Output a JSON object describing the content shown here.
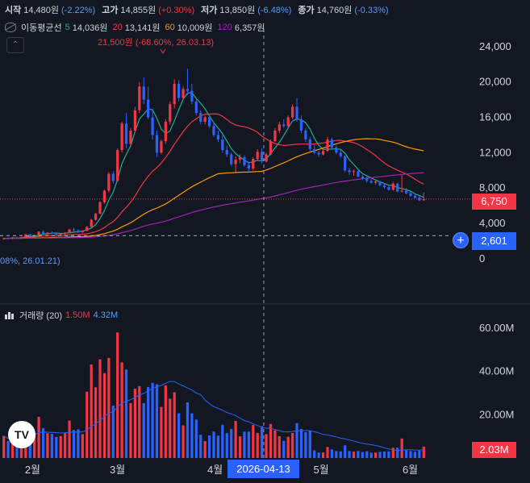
{
  "ohlc": {
    "open_label": "시작",
    "open": "14,480원",
    "open_chg": "(-2.22%)",
    "high_label": "고가",
    "high": "14,855원",
    "high_chg": "(+0.30%)",
    "low_label": "저가",
    "low": "13,850원",
    "low_chg": "(-6.48%)",
    "close_label": "종가",
    "close": "14,760원",
    "close_chg": "(-0.33%)"
  },
  "ma_legend": {
    "name": "이동평균선",
    "p5": "5",
    "v5": "14,036원",
    "p20": "20",
    "v20": "13,141원",
    "p60": "60",
    "v60": "10,009원",
    "p120": "120",
    "v120": "6,357원"
  },
  "volume_legend": {
    "name": "거래량 (20)",
    "v1": "1.50M",
    "v2": "4.32M"
  },
  "annotations": {
    "peak": "21,500원 (-68.60%, 26.03.13)",
    "low": "08%, 26.01.21)"
  },
  "tags": {
    "last_price": "6,750",
    "low_price": "2,601",
    "last_volume": "2.03M",
    "crosshair_date": "2026-04-13",
    "plus": "+"
  },
  "logo_text": "TV",
  "colors": {
    "background": "#131722",
    "up": "#f23645",
    "down": "#2962ff",
    "ma5": "#22ab94",
    "ma20": "#f23645",
    "ma60": "#ff9800",
    "ma120": "#9c27b0",
    "vol_ma": "#2962ff"
  },
  "chart_data": [
    {
      "type": "candlestick",
      "x_labels": [
        "2월",
        "3월",
        "4월",
        "5월",
        "6월"
      ],
      "y_ticks": [
        "24,000",
        "20,000",
        "16,000",
        "12,000",
        "8,000",
        "4,000",
        "0"
      ],
      "y_range": [
        -1300,
        26000
      ],
      "last_price": 6750,
      "low_marker": 2601,
      "candles_ohlc": [
        [
          2200,
          2350,
          2150,
          2300
        ],
        [
          2300,
          2400,
          2250,
          2280
        ],
        [
          2280,
          2450,
          2200,
          2400
        ],
        [
          2400,
          2500,
          2300,
          2350
        ],
        [
          2350,
          2450,
          2300,
          2420
        ],
        [
          2420,
          2800,
          2400,
          2750
        ],
        [
          2750,
          2800,
          2500,
          2550
        ],
        [
          2550,
          2700,
          2450,
          2650
        ],
        [
          2650,
          3100,
          2600,
          3050
        ],
        [
          3050,
          3200,
          2800,
          2850
        ],
        [
          2850,
          3000,
          2700,
          2950
        ],
        [
          2950,
          3100,
          2800,
          2900
        ],
        [
          2900,
          2950,
          2700,
          2750
        ],
        [
          2750,
          2850,
          2600,
          2800
        ],
        [
          2800,
          3000,
          2700,
          2950
        ],
        [
          2950,
          3400,
          2900,
          3300
        ],
        [
          3300,
          3500,
          3100,
          3200
        ],
        [
          3200,
          3300,
          2900,
          3000
        ],
        [
          3000,
          3200,
          2900,
          3150
        ],
        [
          3150,
          3700,
          3100,
          3600
        ],
        [
          3600,
          4500,
          3500,
          4400
        ],
        [
          4400,
          5200,
          4300,
          5100
        ],
        [
          5100,
          6500,
          5000,
          6400
        ],
        [
          6400,
          7800,
          6200,
          7700
        ],
        [
          7700,
          9800,
          7500,
          9600
        ],
        [
          9600,
          9900,
          8500,
          8800
        ],
        [
          8800,
          12500,
          8700,
          12300
        ],
        [
          12300,
          15500,
          12000,
          15300
        ],
        [
          15300,
          16500,
          12500,
          13000
        ],
        [
          13000,
          14800,
          12800,
          14500
        ],
        [
          14500,
          17200,
          14300,
          16800
        ],
        [
          16800,
          20000,
          16500,
          19500
        ],
        [
          19500,
          20500,
          17500,
          18000
        ],
        [
          18000,
          19500,
          15800,
          16000
        ],
        [
          16000,
          17000,
          13500,
          14000
        ],
        [
          14000,
          14500,
          11500,
          12000
        ],
        [
          12000,
          13500,
          11800,
          13300
        ],
        [
          13300,
          15800,
          13000,
          15500
        ],
        [
          15500,
          17800,
          15200,
          17500
        ],
        [
          17500,
          20300,
          17000,
          19800
        ],
        [
          19800,
          20200,
          17800,
          18200
        ],
        [
          18200,
          19500,
          18000,
          19200
        ],
        [
          19200,
          21500,
          18500,
          19000
        ],
        [
          19000,
          19800,
          17500,
          17800
        ],
        [
          17800,
          18000,
          16200,
          16500
        ],
        [
          16500,
          16800,
          15200,
          15500
        ],
        [
          15500,
          16200,
          15200,
          16000
        ],
        [
          16000,
          16300,
          14800,
          15000
        ],
        [
          15000,
          15500,
          13800,
          14000
        ],
        [
          14000,
          14500,
          13200,
          13500
        ],
        [
          13500,
          14000,
          12000,
          12300
        ],
        [
          12300,
          12800,
          11500,
          11800
        ],
        [
          11800,
          12000,
          10500,
          10700
        ],
        [
          10700,
          11600,
          9800,
          11200
        ],
        [
          11200,
          11800,
          10800,
          11500
        ],
        [
          11500,
          11700,
          10400,
          10600
        ],
        [
          10600,
          11000,
          9800,
          10200
        ],
        [
          10200,
          11500,
          10000,
          11300
        ],
        [
          11300,
          12400,
          11200,
          12100
        ],
        [
          12100,
          12500,
          10800,
          11000
        ],
        [
          11000,
          12000,
          10900,
          11800
        ],
        [
          11800,
          13500,
          11700,
          13300
        ],
        [
          13300,
          14800,
          13200,
          14500
        ],
        [
          14500,
          15500,
          14200,
          15200
        ],
        [
          15200,
          15800,
          14800,
          15000
        ],
        [
          15000,
          16200,
          14900,
          16000
        ],
        [
          16000,
          17500,
          15800,
          17200
        ],
        [
          17200,
          18200,
          15500,
          15800
        ],
        [
          15800,
          16200,
          14200,
          14500
        ],
        [
          14500,
          14800,
          13200,
          13500
        ],
        [
          13500,
          13800,
          12200,
          12400
        ],
        [
          12400,
          12900,
          11800,
          12000
        ],
        [
          12000,
          12200,
          11500,
          11800
        ],
        [
          11800,
          12400,
          11700,
          12200
        ],
        [
          12200,
          13800,
          12100,
          13500
        ],
        [
          13500,
          13700,
          12300,
          12600
        ],
        [
          12600,
          12800,
          11800,
          12000
        ],
        [
          12000,
          12300,
          11400,
          11600
        ],
        [
          11600,
          11700,
          9800,
          10000
        ],
        [
          10000,
          10300,
          9500,
          9800
        ],
        [
          9800,
          10100,
          9400,
          9900
        ],
        [
          9900,
          10000,
          9200,
          9300
        ],
        [
          9300,
          9500,
          8900,
          9100
        ],
        [
          9100,
          9300,
          8600,
          8800
        ],
        [
          8800,
          9000,
          8500,
          8600
        ],
        [
          8600,
          8900,
          8400,
          8750
        ],
        [
          8750,
          8800,
          8200,
          8300
        ],
        [
          8300,
          8500,
          7900,
          8100
        ],
        [
          8100,
          8300,
          7700,
          7800
        ],
        [
          7800,
          8700,
          7700,
          8500
        ],
        [
          8500,
          8600,
          7500,
          7600
        ],
        [
          7600,
          9500,
          7500,
          7700
        ],
        [
          7700,
          8000,
          7300,
          7400
        ],
        [
          7400,
          7600,
          7000,
          7100
        ],
        [
          7100,
          7300,
          6800,
          6900
        ],
        [
          6900,
          7100,
          6500,
          6600
        ],
        [
          6600,
          7500,
          6550,
          6750
        ]
      ],
      "ma_values_approx": {
        "ma5_end": 14036,
        "ma20_end": 13141,
        "ma60_end": 10009,
        "ma120_end": 6357
      }
    },
    {
      "type": "bar",
      "name": "volume",
      "y_ticks": [
        "60.00M",
        "40.00M",
        "20.00M"
      ],
      "y_range": [
        0,
        70
      ],
      "unit": "M",
      "last_volume": "2.03M"
    }
  ]
}
